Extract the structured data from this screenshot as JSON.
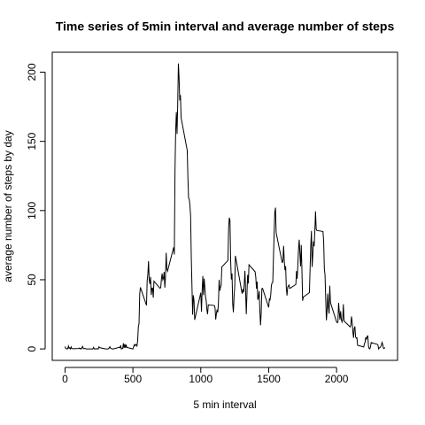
{
  "chart_data": {
    "type": "line",
    "title": "Time series of 5min interval and average number of steps",
    "xlabel": "5 min interval",
    "ylabel": "average number of steps by day",
    "color": "#000000",
    "xlim": [
      -94.2,
      2449.2
    ],
    "ylim": [
      -8.25,
      214.4
    ],
    "xticks": [
      0,
      500,
      1000,
      1500,
      2000
    ],
    "yticks": [
      0,
      50,
      100,
      150,
      200
    ],
    "x": [
      0,
      5,
      10,
      15,
      20,
      25,
      30,
      35,
      40,
      45,
      50,
      55,
      100,
      105,
      110,
      115,
      120,
      125,
      130,
      135,
      140,
      145,
      150,
      155,
      200,
      205,
      210,
      215,
      220,
      225,
      230,
      235,
      240,
      245,
      250,
      255,
      300,
      305,
      310,
      315,
      320,
      325,
      330,
      335,
      340,
      345,
      350,
      355,
      400,
      405,
      410,
      415,
      420,
      425,
      430,
      435,
      440,
      445,
      450,
      455,
      500,
      505,
      510,
      515,
      520,
      525,
      530,
      535,
      540,
      545,
      550,
      555,
      600,
      605,
      610,
      615,
      620,
      625,
      630,
      635,
      640,
      645,
      650,
      655,
      700,
      705,
      710,
      715,
      720,
      725,
      730,
      735,
      740,
      745,
      750,
      755,
      800,
      805,
      810,
      815,
      820,
      825,
      830,
      835,
      840,
      845,
      850,
      855,
      900,
      905,
      910,
      915,
      920,
      925,
      930,
      935,
      940,
      945,
      950,
      955,
      1000,
      1005,
      1010,
      1015,
      1020,
      1025,
      1030,
      1035,
      1040,
      1045,
      1050,
      1055,
      1100,
      1105,
      1110,
      1115,
      1120,
      1125,
      1130,
      1135,
      1140,
      1145,
      1150,
      1155,
      1200,
      1205,
      1210,
      1215,
      1220,
      1225,
      1230,
      1235,
      1240,
      1245,
      1250,
      1255,
      1300,
      1305,
      1310,
      1315,
      1320,
      1325,
      1330,
      1335,
      1340,
      1345,
      1350,
      1355,
      1400,
      1405,
      1410,
      1415,
      1420,
      1425,
      1430,
      1435,
      1440,
      1445,
      1450,
      1455,
      1500,
      1505,
      1510,
      1515,
      1520,
      1525,
      1530,
      1535,
      1540,
      1545,
      1550,
      1555,
      1600,
      1605,
      1610,
      1615,
      1620,
      1625,
      1630,
      1635,
      1640,
      1645,
      1650,
      1655,
      1700,
      1705,
      1710,
      1715,
      1720,
      1725,
      1730,
      1735,
      1740,
      1745,
      1750,
      1755,
      1800,
      1805,
      1810,
      1815,
      1820,
      1825,
      1830,
      1835,
      1840,
      1845,
      1850,
      1855,
      1900,
      1905,
      1910,
      1915,
      1920,
      1925,
      1930,
      1935,
      1940,
      1945,
      1950,
      1955,
      2000,
      2005,
      2010,
      2015,
      2020,
      2025,
      2030,
      2035,
      2040,
      2045,
      2050,
      2055,
      2100,
      2105,
      2110,
      2115,
      2120,
      2125,
      2130,
      2135,
      2140,
      2145,
      2150,
      2155,
      2200,
      2205,
      2210,
      2215,
      2220,
      2225,
      2230,
      2235,
      2240,
      2245,
      2250,
      2255,
      2300,
      2305,
      2310,
      2315,
      2320,
      2325,
      2330,
      2335,
      2340,
      2345,
      2350,
      2355
    ],
    "values": [
      1.7,
      0.34,
      0.13,
      0.15,
      0.08,
      2.1,
      0.53,
      0.87,
      0,
      1.47,
      0.3,
      0.13,
      0.32,
      0.68,
      0.15,
      0.34,
      0,
      1.1,
      1.8,
      0.17,
      0.23,
      0.38,
      0.26,
      0,
      0,
      0,
      1.13,
      0,
      0,
      0.13,
      0,
      0.23,
      0,
      0,
      1.55,
      0.94,
      0,
      0,
      0,
      0,
      0.21,
      0.62,
      1.62,
      0.58,
      0.49,
      0.08,
      0,
      0,
      1.19,
      0.94,
      2.57,
      0,
      0.34,
      0.36,
      4.11,
      0.66,
      3.49,
      0.83,
      3.11,
      1.11,
      0,
      1.57,
      3.0,
      2.25,
      3.32,
      2.96,
      2.09,
      6.06,
      16.0,
      18.3,
      39.5,
      44.5,
      31.5,
      49.3,
      53.8,
      63.5,
      50,
      47,
      52,
      39,
      44,
      44,
      37,
      49,
      43.8,
      44.4,
      50.5,
      54.5,
      49.9,
      51,
      55.7,
      44.3,
      52.3,
      69.5,
      57.8,
      56.2,
      73.4,
      68.2,
      129.4,
      157.5,
      171.2,
      155.4,
      177.3,
      206.2,
      195.9,
      179.6,
      183.4,
      167,
      143.5,
      124,
      109.1,
      108.1,
      103.7,
      95.97,
      66.2,
      45.2,
      24.8,
      38.8,
      35,
      21,
      40.6,
      26.98,
      42.4,
      52.7,
      38.9,
      50.8,
      44.3,
      37.4,
      34.7,
      28.3,
      25.1,
      31.9,
      31.4,
      29.7,
      21.3,
      25.5,
      28.4,
      26.5,
      33.4,
      50,
      42,
      44.6,
      46,
      59.3,
      63.9,
      87.7,
      94.8,
      92.8,
      63.4,
      50.2,
      54.5,
      32.4,
      26.5,
      37.7,
      45.1,
      67.3,
      42.3,
      39.9,
      43.3,
      40.9,
      46.2,
      56.4,
      42.8,
      25.1,
      39.9,
      53.5,
      47.3,
      60.8,
      55.8,
      51.96,
      43.6,
      48.7,
      35.5,
      37.5,
      41.8,
      27.5,
      17.1,
      26.1,
      43.6,
      43.8,
      30,
      36.1,
      35.5,
      38.8,
      46,
      47.8,
      48.1,
      65.3,
      82.9,
      98.7,
      102.1,
      83.97,
      62.1,
      64.1,
      74.5,
      63.2,
      56.9,
      59.8,
      43.9,
      38.6,
      44.7,
      45.5,
      46.2,
      43.7,
      46.6,
      56.3,
      50.7,
      61.2,
      72.7,
      78.9,
      68.9,
      59.7,
      75.1,
      56.5,
      34.8,
      37.5,
      40.7,
      58,
      74.7,
      85.3,
      59.3,
      67.8,
      77.7,
      74.2,
      85.3,
      99.5,
      86.6,
      85.6,
      84.9,
      77.8,
      58,
      53.4,
      36.3,
      20.7,
      27.4,
      40,
      30.2,
      25.5,
      45.7,
      33.5,
      19.6,
      19,
      19.3,
      33.3,
      26.8,
      21.2,
      27.3,
      21.3,
      19.5,
      21.3,
      32.3,
      20.2,
      15.9,
      17.2,
      23.5,
      19.2,
      12.5,
      8,
      14.7,
      16.3,
      8.7,
      7.8,
      8.1,
      2.6,
      1.45,
      3.7,
      4.8,
      8.5,
      7.1,
      8.7,
      9.75,
      2.2,
      0.32,
      0.11,
      1.6,
      4.6,
      3.3,
      2.8,
      0,
      0.83,
      0.96,
      1.58,
      2.6,
      4.7,
      3.3,
      0.64,
      0.23,
      1.08
    ]
  }
}
